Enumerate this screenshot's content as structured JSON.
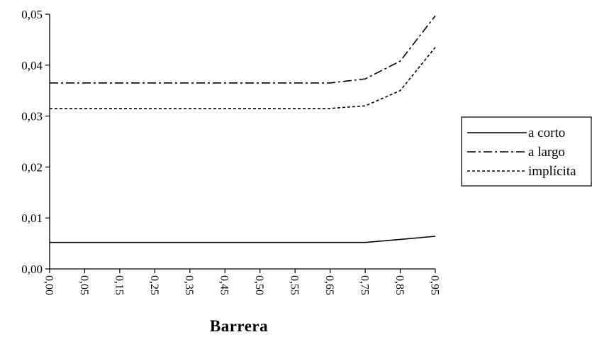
{
  "chart_data": {
    "type": "line",
    "title": "",
    "xlabel": "Barrera",
    "ylabel": "",
    "categories": [
      "0,00",
      "0,05",
      "0,15",
      "0,25",
      "0,35",
      "0,45",
      "0,50",
      "0,55",
      "0,65",
      "0,75",
      "0,85",
      "0,95"
    ],
    "y_ticks": [
      "0,00",
      "0,01",
      "0,02",
      "0,03",
      "0,04",
      "0,05"
    ],
    "ylim": [
      0,
      0.05
    ],
    "grid": false,
    "legend_position": "right",
    "series": [
      {
        "name": "a corto",
        "style": "solid",
        "values": [
          0.0052,
          0.0052,
          0.0052,
          0.0052,
          0.0052,
          0.0052,
          0.0052,
          0.0052,
          0.0052,
          0.0052,
          0.0058,
          0.0064
        ]
      },
      {
        "name": "a largo",
        "style": "dash-dot",
        "values": [
          0.0365,
          0.0365,
          0.0365,
          0.0365,
          0.0365,
          0.0365,
          0.0365,
          0.0365,
          0.0365,
          0.0373,
          0.0408,
          0.0497
        ]
      },
      {
        "name": "implícita",
        "style": "dotted",
        "values": [
          0.0315,
          0.0315,
          0.0315,
          0.0315,
          0.0315,
          0.0315,
          0.0315,
          0.0315,
          0.0315,
          0.032,
          0.035,
          0.0435
        ]
      }
    ]
  }
}
